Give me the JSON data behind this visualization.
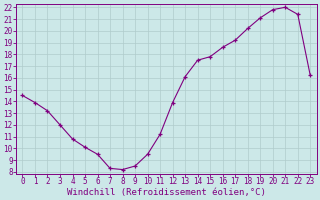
{
  "x_data": [
    0,
    1,
    2,
    3,
    4,
    5,
    6,
    7,
    8,
    9,
    10,
    11,
    12,
    13,
    14,
    15,
    16,
    17,
    18,
    19,
    20,
    21,
    22,
    23
  ],
  "y_data": [
    14.5,
    13.9,
    13.2,
    12.0,
    10.8,
    10.1,
    9.5,
    8.3,
    8.2,
    8.5,
    9.5,
    11.2,
    13.9,
    16.1,
    17.5,
    17.8,
    18.6,
    19.2,
    20.2,
    21.1,
    21.8,
    22.0,
    21.4,
    16.2
  ],
  "line_color": "#800080",
  "marker_color": "#800080",
  "bg_color": "#cce8e8",
  "grid_color": "#b0cccc",
  "xlabel": "Windchill (Refroidissement éolien,°C)",
  "ylim_min": 8,
  "ylim_max": 22,
  "xlim_min": -0.5,
  "xlim_max": 23.5,
  "yticks": [
    8,
    9,
    10,
    11,
    12,
    13,
    14,
    15,
    16,
    17,
    18,
    19,
    20,
    21,
    22
  ],
  "xticks": [
    0,
    1,
    2,
    3,
    4,
    5,
    6,
    7,
    8,
    9,
    10,
    11,
    12,
    13,
    14,
    15,
    16,
    17,
    18,
    19,
    20,
    21,
    22,
    23
  ],
  "tick_fontsize": 5.5,
  "xlabel_fontsize": 6.5
}
